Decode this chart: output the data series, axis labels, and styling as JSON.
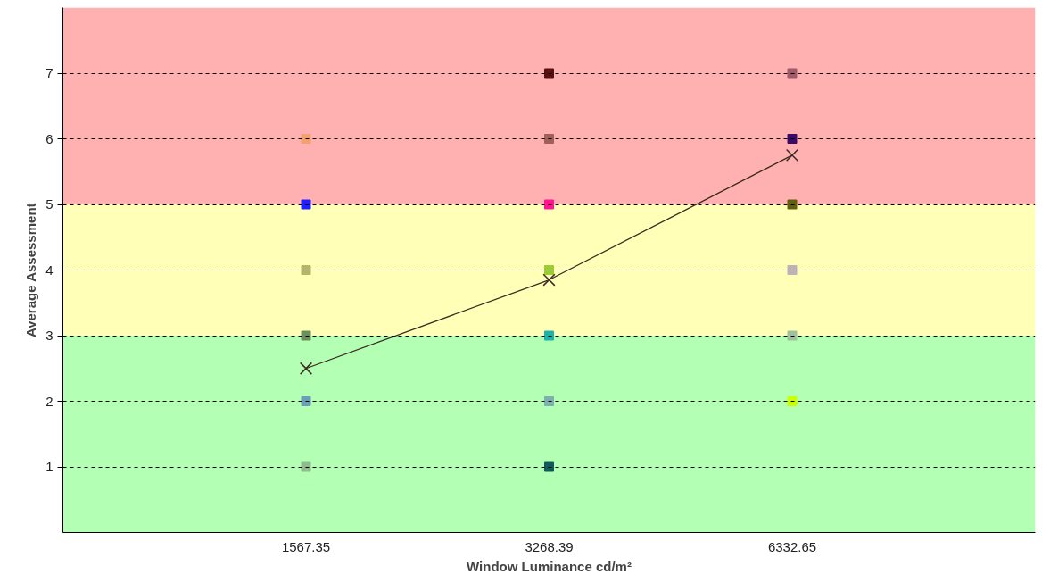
{
  "chart_data": {
    "type": "scatter",
    "categories": [
      "1567.35",
      "3268.39",
      "6332.65"
    ],
    "xlabel": "Window Luminance cd/m²",
    "ylabel": "Average Assessment",
    "ylim": [
      0,
      8
    ],
    "yticks": [
      1,
      2,
      3,
      4,
      5,
      6,
      7
    ],
    "grid": "y",
    "bands": [
      {
        "axis": "y",
        "from": 0,
        "to": 3,
        "color": "#b3ffb3"
      },
      {
        "axis": "y",
        "from": 3,
        "to": 5,
        "color": "#ffffb8"
      },
      {
        "axis": "y",
        "from": 5,
        "to": 8,
        "color": "#ffb0b0"
      }
    ],
    "series": [
      {
        "marker": "square",
        "x": [
          "1567.35",
          "1567.35",
          "1567.35",
          "1567.35",
          "1567.35",
          "1567.35",
          "3268.39",
          "3268.39",
          "3268.39",
          "3268.39",
          "3268.39",
          "3268.39",
          "3268.39",
          "6332.65",
          "6332.65",
          "6332.65",
          "6332.65",
          "6332.65",
          "6332.65"
        ],
        "values": [
          6,
          5,
          4,
          3,
          2,
          1,
          7,
          6,
          5,
          4,
          3,
          2,
          1,
          7,
          6,
          5,
          4,
          3,
          2
        ],
        "colors": [
          "#f4a070",
          "#2020ff",
          "#b5b56a",
          "#6b8e5a",
          "#6a9fb5",
          "#8fbc8f",
          "#5a0f0f",
          "#a0605a",
          "#ff1493",
          "#9acd32",
          "#20b2aa",
          "#7fb0b0",
          "#0f5a5a",
          "#a05a6a",
          "#3a0a6a",
          "#606010",
          "#c0b0b8",
          "#a0c0a0",
          "#ccff00"
        ]
      },
      {
        "type": "line",
        "marker": "cross",
        "color": "#3a2a20",
        "values": [
          2.5,
          3.85,
          5.75
        ]
      }
    ]
  }
}
